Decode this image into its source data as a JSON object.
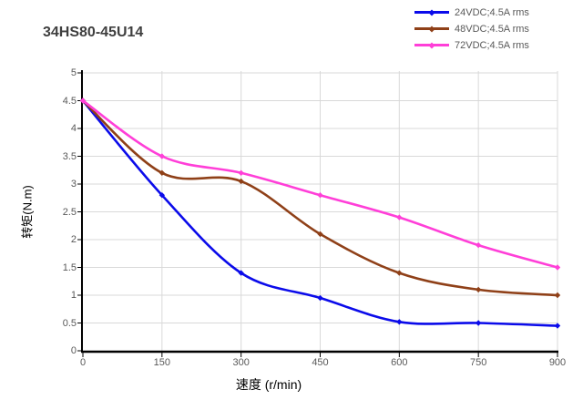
{
  "title": "34HS80-45U14",
  "chart_data": {
    "type": "line",
    "x": [
      0,
      150,
      300,
      450,
      600,
      750,
      900
    ],
    "series": [
      {
        "name": "24VDC;4.5A rms",
        "color": "#0b0bea",
        "values": [
          4.5,
          2.8,
          1.4,
          0.95,
          0.52,
          0.5,
          0.45
        ]
      },
      {
        "name": "48VDC;4.5A rms",
        "color": "#8f4018",
        "values": [
          4.5,
          3.2,
          3.05,
          2.1,
          1.4,
          1.1,
          1.0
        ]
      },
      {
        "name": "72VDC;4.5A rms",
        "color": "#ff3fd8",
        "values": [
          4.5,
          3.5,
          3.2,
          2.8,
          2.4,
          1.9,
          1.5
        ]
      }
    ],
    "xlabel": "速度 (r/min)",
    "ylabel": "转矩(N.m)",
    "xlim": [
      0,
      900
    ],
    "ylim": [
      0,
      5
    ],
    "x_ticks": [
      "0",
      "150",
      "300",
      "450",
      "600",
      "750",
      "900"
    ],
    "y_ticks": [
      "0",
      "0.5",
      "1",
      "1.5",
      "2",
      "2.5",
      "3",
      "3.5",
      "4",
      "4.5",
      "5"
    ],
    "grid": true,
    "legend_position": "top-right",
    "marker": "diamond"
  },
  "colors": {
    "background": "#ffffff",
    "grid": "#d9d9d9",
    "axis": "#000000",
    "tick_text": "#595959",
    "title_text": "#3f3f3f",
    "legend_text": "#595959"
  }
}
